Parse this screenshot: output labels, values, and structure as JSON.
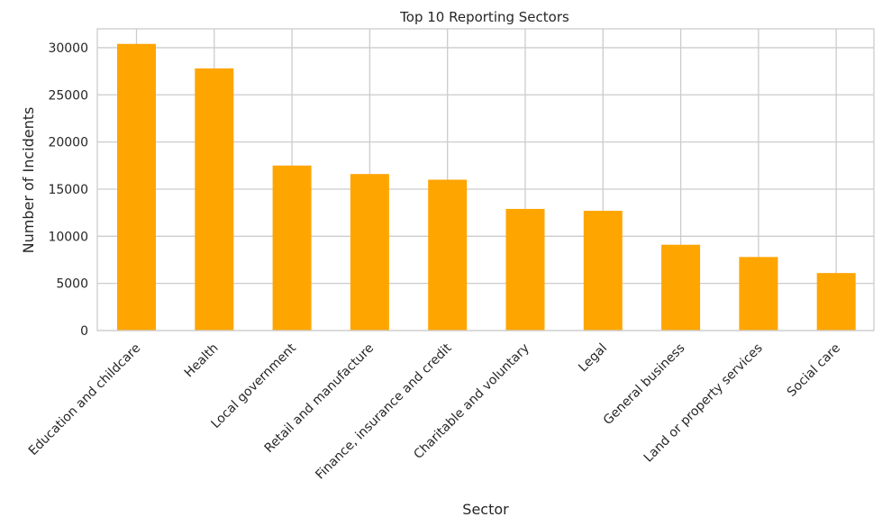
{
  "chart_data": {
    "type": "bar",
    "title": "Top 10 Reporting Sectors",
    "xlabel": "Sector",
    "ylabel": "Number of Incidents",
    "categories": [
      "Education and childcare",
      "Health",
      "Local government",
      "Retail and manufacture",
      "Finance, insurance and credit",
      "Charitable and voluntary",
      "Legal",
      "General business",
      "Land or property services",
      "Social care"
    ],
    "values": [
      30400,
      27800,
      17500,
      16600,
      16000,
      12900,
      12700,
      9100,
      7800,
      6100
    ],
    "ylim": [
      0,
      32000
    ],
    "yticks": [
      0,
      5000,
      10000,
      15000,
      20000,
      25000,
      30000
    ],
    "grid": true,
    "bar_color": "#ffa500"
  }
}
